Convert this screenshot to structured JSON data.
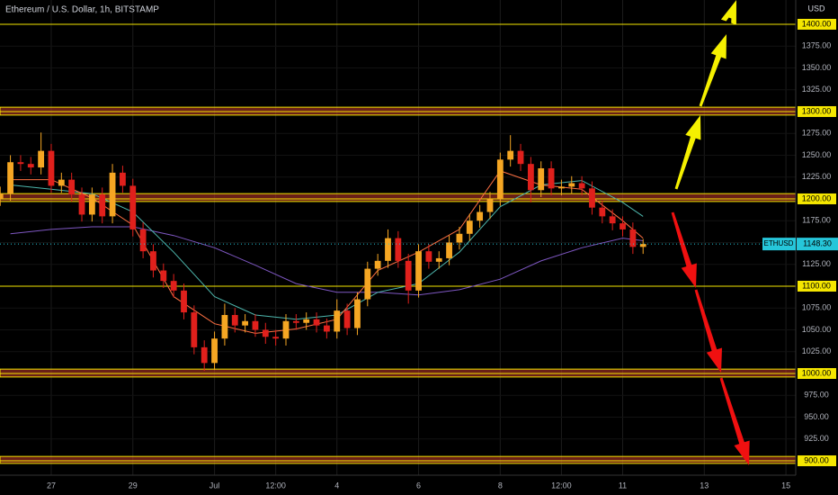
{
  "chart_data": {
    "type": "candlestick",
    "title": "Ethereum / U.S. Dollar, 1h, BITSTAMP",
    "currency": "USD",
    "xlim": [
      -1.255,
      18.24
    ],
    "xticks": [
      {
        "value": 0,
        "label": "27"
      },
      {
        "value": 2,
        "label": "29"
      },
      {
        "value": 4,
        "label": "Jul"
      },
      {
        "value": 5.5,
        "label": "12:00"
      },
      {
        "value": 7,
        "label": "4"
      },
      {
        "value": 9,
        "label": "6"
      },
      {
        "value": 11,
        "label": "8"
      },
      {
        "value": 12.5,
        "label": "12:00"
      },
      {
        "value": 14,
        "label": "11"
      },
      {
        "value": 16,
        "label": "13"
      },
      {
        "value": 18,
        "label": "15"
      }
    ],
    "ylim": [
      883.5,
      1427.8
    ],
    "yticks": [
      {
        "value": 900,
        "label": "900.00"
      },
      {
        "value": 925,
        "label": "925.00"
      },
      {
        "value": 950,
        "label": "950.00"
      },
      {
        "value": 975,
        "label": "975.00"
      },
      {
        "value": 1000,
        "label": "1000.00"
      },
      {
        "value": 1025,
        "label": "1025.00"
      },
      {
        "value": 1050,
        "label": "1050.00"
      },
      {
        "value": 1075,
        "label": "1075.00"
      },
      {
        "value": 1100,
        "label": "1100.00"
      },
      {
        "value": 1125,
        "label": "1125.00"
      },
      {
        "value": 1150,
        "label": "1150.00"
      },
      {
        "value": 1175,
        "label": "1175.00"
      },
      {
        "value": 1200,
        "label": "1200.00"
      },
      {
        "value": 1225,
        "label": "1225.00"
      },
      {
        "value": 1250,
        "label": "1250.00"
      },
      {
        "value": 1275,
        "label": "1275.00"
      },
      {
        "value": 1300,
        "label": "1300.00"
      },
      {
        "value": 1325,
        "label": "1325.00"
      },
      {
        "value": 1350,
        "label": "1350.00"
      },
      {
        "value": 1375,
        "label": "1375.00"
      },
      {
        "value": 1400,
        "label": "1400.00"
      }
    ],
    "grid": true,
    "up_color": "#f5a623",
    "down_color": "#e0201c",
    "level_color": "#f5e600",
    "band_color": "#c0392b",
    "levels": [
      1400,
      1300,
      1200,
      1100,
      1000,
      900
    ],
    "level_bands": [
      [
        1296,
        1305
      ],
      [
        1197,
        1206
      ],
      [
        996,
        1005
      ],
      [
        897,
        905
      ]
    ],
    "x": [
      -1.25,
      -1,
      -0.75,
      -0.5,
      -0.25,
      0,
      0.25,
      0.5,
      0.75,
      1,
      1.25,
      1.5,
      1.75,
      2,
      2.25,
      2.5,
      2.75,
      3,
      3.25,
      3.5,
      3.75,
      4,
      4.25,
      4.5,
      4.75,
      5,
      5.25,
      5.5,
      5.75,
      6,
      6.25,
      6.5,
      6.75,
      7,
      7.25,
      7.5,
      7.75,
      8,
      8.25,
      8.5,
      8.75,
      9,
      9.25,
      9.5,
      9.75,
      10,
      10.25,
      10.5,
      10.75,
      11,
      11.25,
      11.5,
      11.75,
      12,
      12.25,
      12.5,
      12.75,
      13,
      13.25,
      13.5,
      13.75,
      14,
      14.25,
      14.5
    ],
    "open": [
      1200,
      1206,
      1242,
      1240,
      1236,
      1255,
      1215,
      1222,
      1205,
      1182,
      1205,
      1180,
      1230,
      1215,
      1165,
      1140,
      1118,
      1106,
      1095,
      1070,
      1030,
      1012,
      1040,
      1067,
      1055,
      1060,
      1050,
      1042,
      1040,
      1060,
      1058,
      1062,
      1055,
      1048,
      1072,
      1052,
      1085,
      1120,
      1129,
      1155,
      1129,
      1095,
      1140,
      1128,
      1132,
      1150,
      1160,
      1175,
      1185,
      1200,
      1245,
      1255,
      1240,
      1210,
      1235,
      1212,
      1214,
      1218,
      1212,
      1190,
      1180,
      1172,
      1165,
      1145
    ],
    "high": [
      1214,
      1250,
      1250,
      1248,
      1276,
      1263,
      1230,
      1230,
      1213,
      1213,
      1213,
      1240,
      1238,
      1223,
      1173,
      1148,
      1126,
      1114,
      1103,
      1078,
      1038,
      1048,
      1080,
      1075,
      1068,
      1068,
      1058,
      1050,
      1068,
      1068,
      1070,
      1070,
      1063,
      1085,
      1080,
      1093,
      1128,
      1137,
      1165,
      1163,
      1137,
      1148,
      1148,
      1140,
      1158,
      1168,
      1183,
      1193,
      1208,
      1253,
      1273,
      1263,
      1248,
      1243,
      1243,
      1222,
      1226,
      1226,
      1220,
      1198,
      1188,
      1180,
      1173,
      1154
    ],
    "low": [
      1192,
      1198,
      1232,
      1228,
      1228,
      1207,
      1207,
      1197,
      1174,
      1174,
      1172,
      1172,
      1207,
      1157,
      1132,
      1110,
      1098,
      1087,
      1062,
      1022,
      1003,
      1004,
      1032,
      1047,
      1047,
      1042,
      1034,
      1032,
      1032,
      1050,
      1050,
      1047,
      1040,
      1040,
      1044,
      1044,
      1077,
      1112,
      1121,
      1121,
      1080,
      1087,
      1120,
      1120,
      1124,
      1142,
      1152,
      1167,
      1177,
      1192,
      1237,
      1232,
      1196,
      1202,
      1204,
      1204,
      1206,
      1204,
      1182,
      1172,
      1164,
      1157,
      1137,
      1137
    ],
    "close": [
      1206,
      1242,
      1240,
      1236,
      1255,
      1215,
      1222,
      1205,
      1182,
      1205,
      1180,
      1230,
      1215,
      1165,
      1140,
      1118,
      1106,
      1095,
      1070,
      1030,
      1012,
      1040,
      1067,
      1055,
      1060,
      1050,
      1042,
      1040,
      1060,
      1058,
      1062,
      1055,
      1048,
      1072,
      1052,
      1085,
      1120,
      1129,
      1155,
      1129,
      1095,
      1140,
      1128,
      1132,
      1150,
      1160,
      1175,
      1185,
      1200,
      1245,
      1255,
      1240,
      1210,
      1235,
      1212,
      1214,
      1218,
      1212,
      1190,
      1180,
      1172,
      1165,
      1145,
      1148.3
    ],
    "moving_averages": [
      {
        "color": "#7e57c2",
        "x": [
          -1,
          0,
          1,
          2,
          3,
          4,
          5,
          6,
          7,
          8,
          9,
          10,
          11,
          12,
          13,
          14,
          14.5
        ],
        "values": [
          1160,
          1165,
          1168,
          1168,
          1158,
          1144,
          1124,
          1103,
          1093,
          1093,
          1090,
          1096,
          1108,
          1129,
          1144,
          1155,
          1152
        ]
      },
      {
        "color": "#4db6ac",
        "x": [
          -1,
          0,
          1,
          2,
          3,
          4,
          5,
          6,
          7,
          8,
          9,
          10,
          11,
          12,
          13,
          14,
          14.5
        ],
        "values": [
          1216,
          1211,
          1206,
          1185,
          1139,
          1088,
          1067,
          1062,
          1067,
          1093,
          1103,
          1139,
          1191,
          1216,
          1221,
          1196,
          1180
        ]
      },
      {
        "color": "#ff7043",
        "x": [
          -1,
          0,
          1,
          2,
          3,
          4,
          5,
          6,
          7,
          8,
          9,
          10,
          11,
          12,
          13,
          14,
          14.5
        ],
        "values": [
          1222,
          1222,
          1201,
          1170,
          1088,
          1057,
          1046,
          1051,
          1062,
          1118,
          1139,
          1165,
          1232,
          1216,
          1211,
          1175,
          1155
        ]
      }
    ],
    "last_price": {
      "symbol": "ETHUSD",
      "value": 1148.3,
      "label": "1148.30",
      "color": "#26c6da"
    }
  }
}
